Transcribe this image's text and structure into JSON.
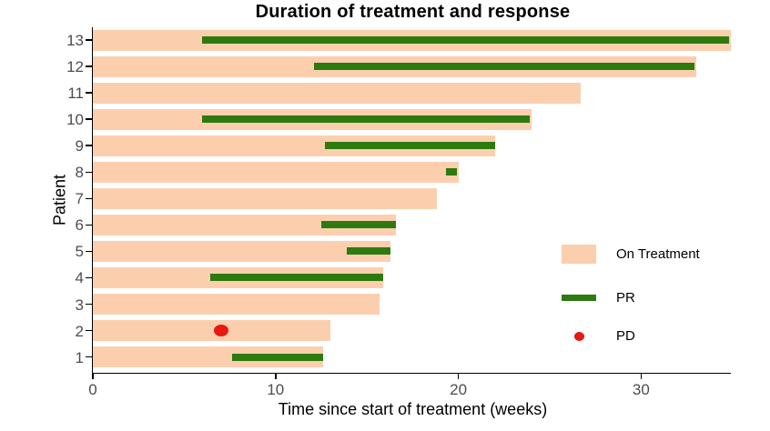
{
  "chart_data": {
    "type": "bar",
    "variant": "swimmer-plot",
    "title": "Duration of treatment and response",
    "xlabel": "Time since start of treatment (weeks)",
    "ylabel": "Patient",
    "xlim": [
      0,
      35
    ],
    "x_ticks": [
      0,
      10,
      20,
      30
    ],
    "grid": false,
    "legend_position": "right-lower",
    "legend": [
      {
        "label": "On Treatment",
        "marker": "bar",
        "color": "#fbcfae"
      },
      {
        "label": "PR",
        "marker": "line",
        "color": "#2d7a0f"
      },
      {
        "label": "PD",
        "marker": "dot",
        "color": "#e51812"
      }
    ],
    "patients": [
      {
        "patient": 13,
        "on_treatment_weeks": 34.9,
        "pr_start": 6.0,
        "pr_end": 34.8
      },
      {
        "patient": 12,
        "on_treatment_weeks": 33.0,
        "pr_start": 12.1,
        "pr_end": 32.9
      },
      {
        "patient": 11,
        "on_treatment_weeks": 26.7
      },
      {
        "patient": 10,
        "on_treatment_weeks": 24.0,
        "pr_start": 6.0,
        "pr_end": 23.9
      },
      {
        "patient": 9,
        "on_treatment_weeks": 22.0,
        "pr_start": 12.7,
        "pr_end": 22.0
      },
      {
        "patient": 8,
        "on_treatment_weeks": 20.0,
        "pr_start": 19.3,
        "pr_end": 19.9
      },
      {
        "patient": 7,
        "on_treatment_weeks": 18.8
      },
      {
        "patient": 6,
        "on_treatment_weeks": 16.6,
        "pr_start": 12.5,
        "pr_end": 16.6
      },
      {
        "patient": 5,
        "on_treatment_weeks": 16.3,
        "pr_start": 13.9,
        "pr_end": 16.3
      },
      {
        "patient": 4,
        "on_treatment_weeks": 15.9,
        "pr_start": 6.4,
        "pr_end": 15.9
      },
      {
        "patient": 3,
        "on_treatment_weeks": 15.7
      },
      {
        "patient": 2,
        "on_treatment_weeks": 13.0,
        "pd_week": 7.0
      },
      {
        "patient": 1,
        "on_treatment_weeks": 12.6,
        "pr_start": 7.6,
        "pr_end": 12.6
      }
    ],
    "colors": {
      "on_treatment": "#fbcfae",
      "pr": "#2d7a0f",
      "pd": "#e51812",
      "axis": "#000000",
      "tick_label": "#4d4d4d"
    }
  }
}
